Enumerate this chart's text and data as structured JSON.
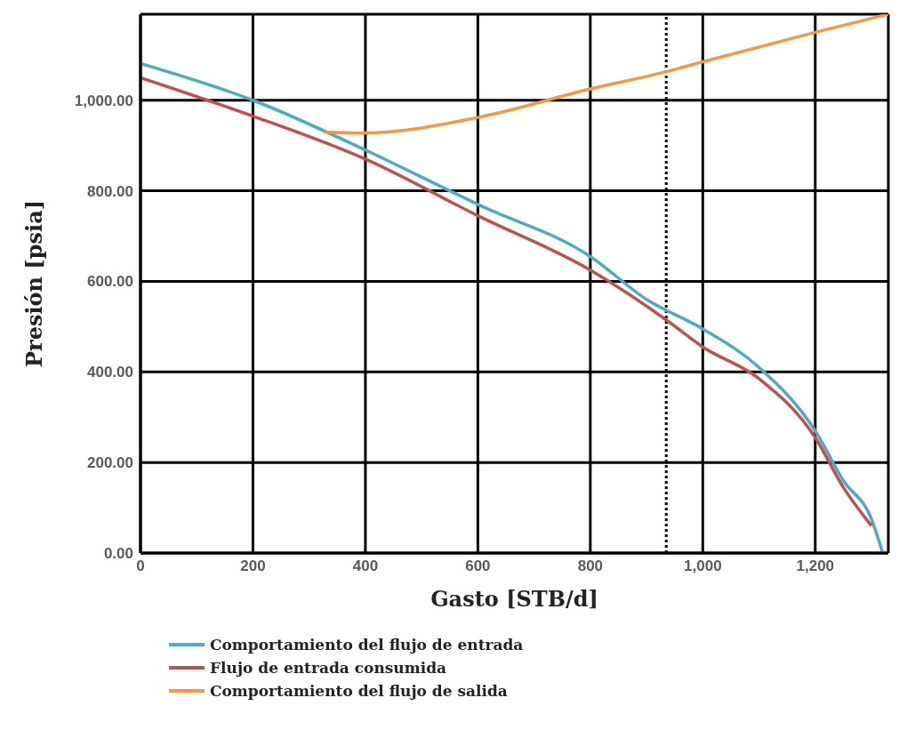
{
  "chart_data": {
    "type": "line",
    "xlabel": "Gasto [STB/d]",
    "ylabel": "Presión [psia]",
    "xlim": [
      0,
      1330
    ],
    "xticks": [
      0,
      200,
      400,
      600,
      800,
      {
        "value": 1000,
        "label": "1,000"
      },
      {
        "value": 1200,
        "label": "1,200"
      }
    ],
    "ylim": [
      0,
      1190
    ],
    "yticks": [
      {
        "value": 0,
        "label": "0.00"
      },
      {
        "value": 200,
        "label": "200.00"
      },
      {
        "value": 400,
        "label": "400.00"
      },
      {
        "value": 600,
        "label": "600.00"
      },
      {
        "value": 800,
        "label": "800.00"
      },
      {
        "value": 1000,
        "label": "1,000.00"
      }
    ],
    "grid": true,
    "legend": "bottom",
    "marker": "none",
    "line_style": "solid",
    "ref_lines": [
      {
        "axis": "x",
        "value": 935,
        "color": "#000000",
        "line_style": "dotted"
      }
    ],
    "series": [
      {
        "name": "Comportamiento del flujo de entrada",
        "color": "#4bacc6",
        "x": [
          0,
          200,
          400,
          550,
          600,
          800,
          900,
          1000,
          1100,
          1200,
          1250,
          1300,
          1320
        ],
        "values": [
          1081,
          1000,
          890,
          800,
          770,
          655,
          560,
          495,
          410,
          270,
          160,
          75,
          0
        ]
      },
      {
        "name": "Flujo de entrada consumida",
        "color": "#c0504d",
        "x": [
          0,
          200,
          400,
          600,
          800,
          935,
          1000,
          1100,
          1200,
          1250,
          1300
        ],
        "values": [
          1050,
          965,
          870,
          745,
          625,
          515,
          455,
          385,
          255,
          145,
          60
        ]
      },
      {
        "name": "Comportamiento del flujo de salida",
        "color": "#f79646",
        "x": [
          326,
          400,
          600,
          800,
          935,
          1000,
          1200,
          1330
        ],
        "values": [
          930,
          928,
          962,
          1025,
          1063,
          1085,
          1150,
          1190
        ]
      }
    ]
  }
}
